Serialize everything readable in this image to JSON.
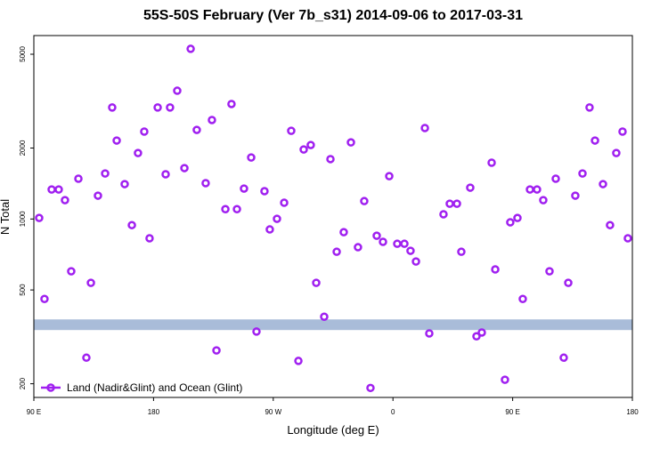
{
  "chart_data": {
    "type": "scatter",
    "title": "55S-50S February (Ver 7b_s31)   2014-09-06 to 2017-03-31",
    "xlabel": "Longitude (deg E)",
    "ylabel": "N Total",
    "xlim": [
      90,
      540
    ],
    "ylim": [
      175,
      6000
    ],
    "ylog": true,
    "xticks": [
      {
        "value": 90,
        "label": "90 E"
      },
      180,
      {
        "value": 270,
        "label": "90 W"
      },
      {
        "value": 360,
        "label": "0"
      },
      {
        "value": 450,
        "label": "90 E"
      },
      {
        "value": 540,
        "label": "180"
      }
    ],
    "yticks": [
      200,
      500,
      1000,
      2000,
      5000
    ],
    "legend": "bottom-left",
    "bands": [
      {
        "range": [
          338,
          375
        ],
        "color": "#a9bcd9"
      }
    ],
    "series": [
      {
        "name": "Land (Nadir&Glint) and Ocean (Glint)",
        "color": "#a020f0",
        "x": [
          94.0,
          98.0,
          103.4,
          108.7,
          113.4,
          118.1,
          123.5,
          129.5,
          132.9,
          138.2,
          143.6,
          148.9,
          152.3,
          158.3,
          163.7,
          168.3,
          173.0,
          177.0,
          183.1,
          189.1,
          192.4,
          197.8,
          203.2,
          207.9,
          212.5,
          219.2,
          223.9,
          227.3,
          234.0,
          238.6,
          242.7,
          248.0,
          253.4,
          257.4,
          263.4,
          267.4,
          272.8,
          278.2,
          283.5,
          288.9,
          292.9,
          298.2,
          302.3,
          308.3,
          313.0,
          317.7,
          323.0,
          328.4,
          333.7,
          338.4,
          343.1,
          347.8,
          352.5,
          357.2,
          363.2,
          368.6,
          373.2,
          377.3,
          384.0,
          387.3,
          398.0,
          402.7,
          408.1,
          411.4,
          418.1,
          422.8,
          426.8,
          434.2,
          436.9,
          444.2,
          448.2,
          453.6,
          457.6,
          463.0,
          468.3,
          473.0,
          477.7,
          482.4,
          488.4,
          491.8,
          497.1,
          502.5,
          507.8,
          511.9,
          517.9,
          523.2,
          527.9,
          532.6,
          536.6
        ],
        "values": [
          1010,
          458,
          1334,
          1334,
          1202,
          600,
          1482,
          258,
          536,
          1256,
          1560,
          2972,
          2152,
          1406,
          942,
          1905,
          2348,
          828,
          2972,
          1548,
          2972,
          3500,
          1644,
          5270,
          2388,
          1419,
          2630,
          277,
          1101,
          3075,
          1101,
          1346,
          1824,
          333,
          1312,
          903,
          1002,
          1172,
          2366,
          250,
          1972,
          2060,
          536,
          385,
          1795,
          726,
          879,
          2113,
          759,
          1191,
          192,
          849,
          800,
          1520,
          785,
          785,
          733,
          660,
          2432,
          327,
          1047,
          1161,
          1161,
          726,
          1358,
          318,
          330,
          1733,
          611,
          208,
          968,
          1010,
          458,
          1334,
          1334,
          1202,
          600,
          1482,
          258,
          536,
          1256,
          1560,
          2972,
          2152,
          1406,
          942,
          1905,
          2348,
          828
        ]
      }
    ]
  }
}
